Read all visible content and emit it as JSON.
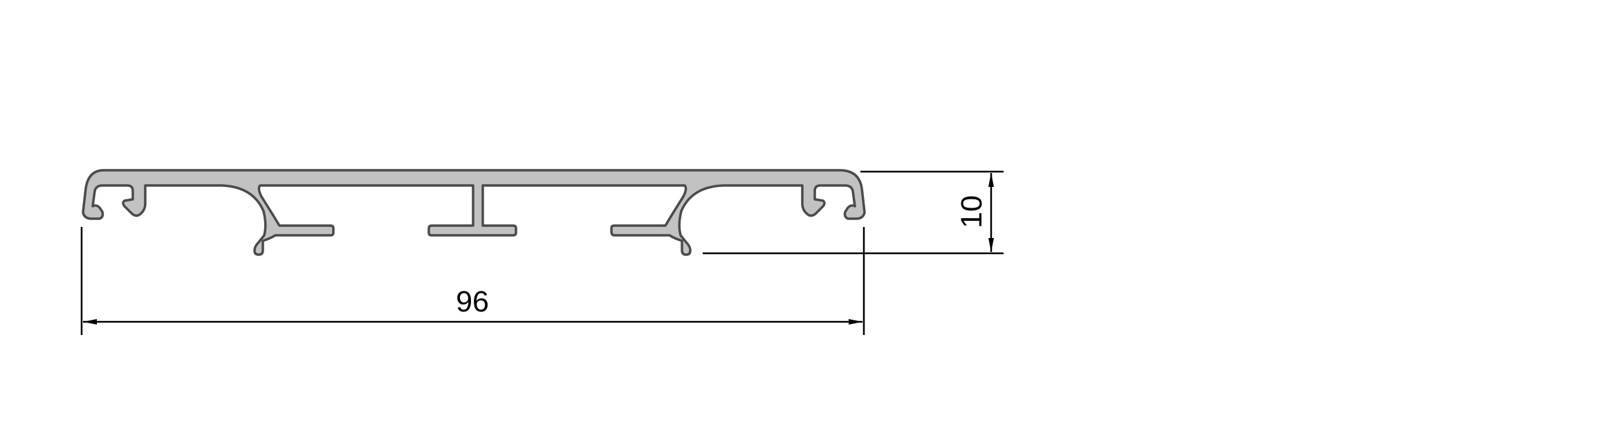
{
  "drawing": {
    "width_label": "96",
    "height_label": "10"
  },
  "colors": {
    "profile_fill": "#c2c2c2",
    "profile_stroke": "#4a4a4a",
    "dimension_line": "#000000"
  }
}
